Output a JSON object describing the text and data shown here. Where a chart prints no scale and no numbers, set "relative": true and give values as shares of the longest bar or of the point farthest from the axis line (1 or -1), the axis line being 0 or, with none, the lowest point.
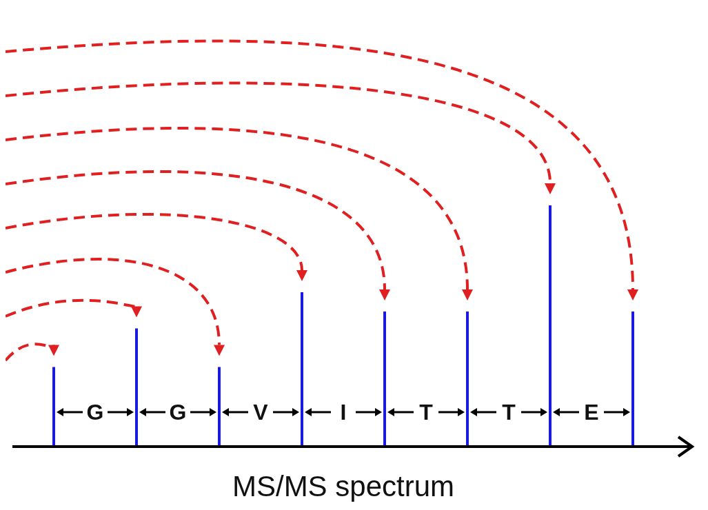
{
  "chart_data": {
    "type": "bar",
    "relative": true,
    "xlabel": "MS/MS spectrum",
    "categories": [
      null,
      null,
      null,
      null,
      null,
      null,
      null,
      null
    ],
    "values": [
      0.33,
      0.49,
      0.33,
      0.64,
      0.56,
      0.56,
      1,
      0.56
    ],
    "color": "#1a1ae0",
    "annotations": [
      "G",
      "G",
      "V",
      "I",
      "T",
      "T",
      "E"
    ]
  }
}
